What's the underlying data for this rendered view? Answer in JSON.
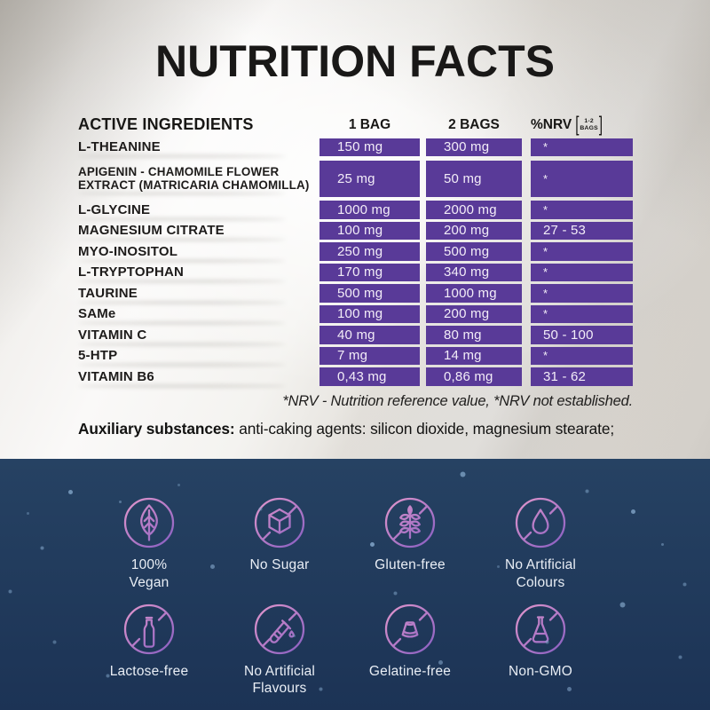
{
  "title": "NUTRITION FACTS",
  "table": {
    "headers": {
      "ingredients": "ACTIVE INGREDIENTS",
      "col1": "1 BAG",
      "col2": "2 BAGS",
      "nrv": "%NRV",
      "bracket_open": "[",
      "bracket_top": "1-2",
      "bracket_bottom": "BAGS",
      "bracket_close": "]"
    },
    "rows": [
      {
        "name": "L-THEANINE",
        "one_bag": "150 mg",
        "two_bags": "300 mg",
        "nrv": "*"
      },
      {
        "name": "APIGENIN - CHAMOMILE FLOWER\nEXTRACT (MATRICARIA CHAMOMILLA)",
        "one_bag": "25 mg",
        "two_bags": "50 mg",
        "nrv": "*"
      },
      {
        "name": "L-GLYCINE",
        "one_bag": "1000 mg",
        "two_bags": "2000 mg",
        "nrv": "*"
      },
      {
        "name": "MAGNESIUM CITRATE",
        "one_bag": "100 mg",
        "two_bags": "200 mg",
        "nrv": "27 - 53"
      },
      {
        "name": "MYO-INOSITOL",
        "one_bag": "250 mg",
        "two_bags": "500 mg",
        "nrv": "*"
      },
      {
        "name": "L-TRYPTOPHAN",
        "one_bag": "170 mg",
        "two_bags": "340 mg",
        "nrv": "*"
      },
      {
        "name": "TAURINE",
        "one_bag": "500 mg",
        "two_bags": "1000 mg",
        "nrv": "*"
      },
      {
        "name": "SAMe",
        "one_bag": "100 mg",
        "two_bags": "200 mg",
        "nrv": "*"
      },
      {
        "name": "VITAMIN C",
        "one_bag": "40 mg",
        "two_bags": "80 mg",
        "nrv": "50 - 100"
      },
      {
        "name": "5-HTP",
        "one_bag": "7 mg",
        "two_bags": "14 mg",
        "nrv": "*"
      },
      {
        "name": "VITAMIN B6",
        "one_bag": "0,43 mg",
        "two_bags": "0,86 mg",
        "nrv": "31 - 62"
      }
    ]
  },
  "footnote": "*NRV - Nutrition reference value, *NRV not established.",
  "auxiliary": {
    "label": "Auxiliary substances:",
    "text": " anti-caking agents: silicon dioxide, magnesium stearate;"
  },
  "badges": [
    {
      "label": "100%\nVegan",
      "icon": "leaf-icon",
      "crossed": false
    },
    {
      "label": "No Sugar",
      "icon": "sugar-cube-icon",
      "crossed": true
    },
    {
      "label": "Gluten-free",
      "icon": "wheat-icon",
      "crossed": true
    },
    {
      "label": "No Artificial\nColours",
      "icon": "droplet-icon",
      "crossed": true
    },
    {
      "label": "Lactose-free",
      "icon": "milk-bottle-icon",
      "crossed": true
    },
    {
      "label": "No Artificial\nFlavours",
      "icon": "test-tube-icon",
      "crossed": true
    },
    {
      "label": "Gelatine-free",
      "icon": "gelatine-icon",
      "crossed": true
    },
    {
      "label": "Non-GMO",
      "icon": "flask-icon",
      "crossed": true
    }
  ],
  "colors": {
    "cell_purple": "#593a98",
    "cell_text": "#f3edf8",
    "heading_black": "#191817",
    "navy_top": "#264263",
    "navy_bottom": "#1c3355",
    "icon_gradient_start": "#dc93cb",
    "icon_gradient_end": "#8d62c2",
    "star_blue": "#88accf",
    "badge_label": "#e9eef5"
  }
}
